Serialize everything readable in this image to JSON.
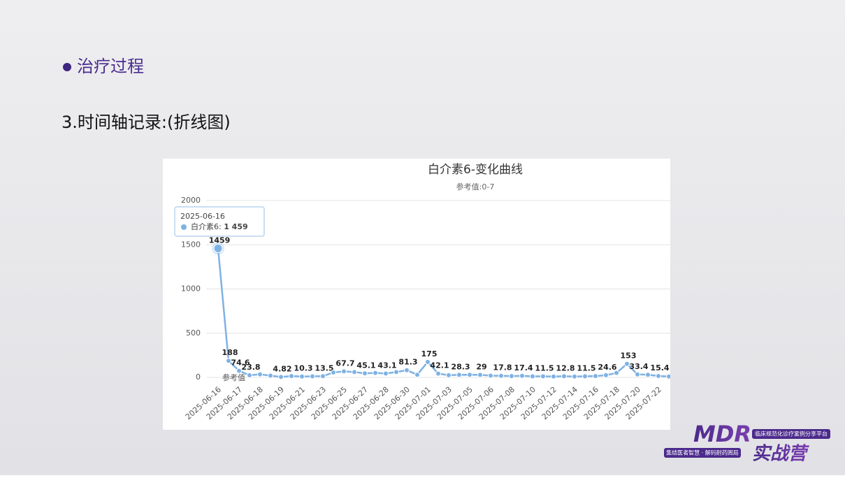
{
  "slide": {
    "heading": "治疗过程",
    "subheading": "3.时间轴记录:(折线图)"
  },
  "chart_data": {
    "type": "line",
    "title": "白介素6-变化曲线",
    "subtitle": "参考值:0-7",
    "categories": [
      "2025-06-16",
      null,
      "2025-06-17",
      null,
      "2025-06-18",
      null,
      "2025-06-19",
      null,
      "2025-06-21",
      null,
      "2025-06-23",
      null,
      "2025-06-25",
      null,
      "2025-06-27",
      null,
      "2025-06-28",
      null,
      "2025-06-30",
      null,
      "2025-07-01",
      null,
      "2025-07-03",
      null,
      "2025-07-05",
      null,
      "2025-07-06",
      null,
      "2025-07-08",
      null,
      "2025-07-10",
      null,
      "2025-07-12",
      null,
      "2025-07-14",
      null,
      "2025-07-16",
      null,
      "2025-07-18",
      null,
      "2025-07-20",
      null,
      "2025-07-22",
      null
    ],
    "series": [
      {
        "name": "白介素6",
        "color": "#7eb2e4",
        "values": [
          1459,
          188,
          74.6,
          23.8,
          35,
          20,
          4.82,
          15,
          10.3,
          12,
          13.5,
          55,
          67.7,
          60,
          45.1,
          50,
          43.1,
          60,
          81.3,
          30,
          175,
          42.1,
          25,
          28.3,
          30,
          29,
          20,
          17.8,
          15,
          17.4,
          12,
          11.5,
          10,
          12.8,
          10,
          11.5,
          15,
          24.6,
          50,
          153,
          33.4,
          30,
          15.4,
          10
        ],
        "value_labels": [
          "1459",
          "188",
          "74.6",
          "23.8",
          null,
          null,
          "4.82",
          null,
          "10.3",
          null,
          "13.5",
          null,
          "67.7",
          null,
          "45.1",
          null,
          "43.1",
          null,
          "81.3",
          null,
          "175",
          "42.1",
          null,
          "28.3",
          null,
          "29",
          null,
          "17.8",
          null,
          "17.4",
          null,
          "11.5",
          null,
          "12.8",
          null,
          "11.5",
          null,
          "24.6",
          null,
          "153",
          "33.4",
          null,
          "15.4",
          null
        ]
      }
    ],
    "ylim": [
      0,
      2000
    ],
    "yticks": [
      0,
      500,
      1000,
      1500,
      2000
    ],
    "grid": true,
    "reference_label": "参考值",
    "tooltip": {
      "value_label": "1 459"
    }
  },
  "logo": {
    "brand": "MDR",
    "camp": "实战营",
    "platform": "临床规范化诊疗案例分享平台",
    "slogan": "集结医者智慧 · 解码耐药困局"
  }
}
